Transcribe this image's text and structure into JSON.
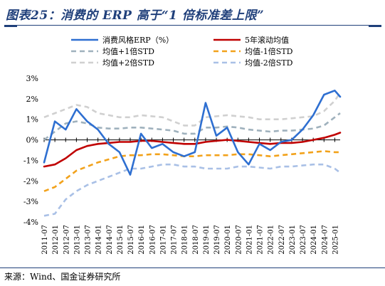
{
  "header": {
    "title": "图表25：消费的 ERP 高于“1 倍标准差上限”"
  },
  "footer": {
    "source": "来源：Wind、国金证券研究所"
  },
  "chart_data": {
    "type": "line",
    "ylim": [
      -4,
      3
    ],
    "y_ticks": [
      "3%",
      "2%",
      "1%",
      "0%",
      "-1%",
      "-2%",
      "-3%",
      "-4%"
    ],
    "x_ticks": [
      "2011-07",
      "2012-01",
      "2012-07",
      "2013-01",
      "2013-07",
      "2014-01",
      "2014-07",
      "2015-01",
      "2015-07",
      "2016-01",
      "2016-07",
      "2017-01",
      "2017-07",
      "2018-01",
      "2018-07",
      "2019-01",
      "2019-07",
      "2020-01",
      "2020-07",
      "2021-01",
      "2021-07",
      "2022-01",
      "2022-07",
      "2023-01",
      "2023-07",
      "2024-01",
      "2024-07",
      "2025-01"
    ],
    "legend_placement": "top",
    "x": [
      "2011-07",
      "2012-01",
      "2012-07",
      "2013-01",
      "2013-07",
      "2014-01",
      "2014-07",
      "2015-01",
      "2015-07",
      "2016-01",
      "2016-07",
      "2017-01",
      "2017-07",
      "2018-01",
      "2018-07",
      "2019-01",
      "2019-07",
      "2020-01",
      "2020-07",
      "2021-01",
      "2021-07",
      "2022-01",
      "2022-07",
      "2023-01",
      "2023-07",
      "2024-01",
      "2024-07",
      "2025-01",
      "2025-04"
    ],
    "series": [
      {
        "name": "消费风格ERP（%）",
        "color": "#2e6fd1",
        "style": "solid",
        "width": 2.6,
        "values": [
          -1.1,
          0.9,
          0.5,
          1.5,
          0.9,
          0.5,
          -0.2,
          -0.6,
          -1.7,
          0.3,
          -0.4,
          -0.2,
          -0.6,
          -0.8,
          -0.6,
          1.8,
          0.2,
          0.6,
          -0.6,
          -1.2,
          -0.2,
          -0.5,
          -0.1,
          0.0,
          0.5,
          1.2,
          2.2,
          2.4,
          2.1
        ]
      },
      {
        "name": "5年滚动均值",
        "color": "#c00000",
        "style": "solid",
        "width": 2.6,
        "values": [
          -1.3,
          -1.2,
          -0.9,
          -0.5,
          -0.3,
          -0.2,
          -0.15,
          -0.1,
          -0.1,
          -0.05,
          -0.05,
          -0.1,
          -0.15,
          -0.2,
          -0.2,
          -0.1,
          -0.05,
          0.0,
          -0.05,
          -0.1,
          -0.15,
          -0.2,
          -0.15,
          -0.15,
          -0.1,
          0.0,
          0.1,
          0.25,
          0.35
        ]
      },
      {
        "name": "均值+1倍STD",
        "color": "#9fb1bd",
        "style": "dashed",
        "width": 2.6,
        "values": [
          0.0,
          0.4,
          0.8,
          0.9,
          0.8,
          0.6,
          0.55,
          0.55,
          0.6,
          0.6,
          0.55,
          0.5,
          0.45,
          0.3,
          0.3,
          0.6,
          0.6,
          0.65,
          0.6,
          0.5,
          0.45,
          0.4,
          0.45,
          0.45,
          0.5,
          0.55,
          0.7,
          1.1,
          1.3
        ]
      },
      {
        "name": "均值-1倍STD",
        "color": "#f2a21b",
        "style": "dashed",
        "width": 2.6,
        "values": [
          -2.5,
          -2.3,
          -1.9,
          -1.5,
          -1.3,
          -1.1,
          -0.95,
          -0.8,
          -0.75,
          -0.75,
          -0.7,
          -0.7,
          -0.75,
          -0.8,
          -0.8,
          -0.75,
          -0.75,
          -0.75,
          -0.7,
          -0.7,
          -0.75,
          -0.8,
          -0.75,
          -0.7,
          -0.65,
          -0.6,
          -0.55,
          -0.6,
          -0.6
        ]
      },
      {
        "name": "均值+2倍STD",
        "color": "#d0d0d0",
        "style": "dashed",
        "width": 2.6,
        "values": [
          1.1,
          1.3,
          1.5,
          1.7,
          1.6,
          1.3,
          1.2,
          1.1,
          1.1,
          1.2,
          1.15,
          1.1,
          0.9,
          0.7,
          0.7,
          1.1,
          1.15,
          1.2,
          1.15,
          1.1,
          1.0,
          1.0,
          1.0,
          1.05,
          1.1,
          1.15,
          1.4,
          1.9,
          2.3
        ]
      },
      {
        "name": "均值-2倍STD",
        "color": "#a9c0e6",
        "style": "dashed",
        "width": 2.6,
        "values": [
          -3.7,
          -3.6,
          -2.9,
          -2.5,
          -2.2,
          -2.0,
          -1.8,
          -1.6,
          -1.4,
          -1.4,
          -1.3,
          -1.2,
          -1.2,
          -1.3,
          -1.3,
          -1.4,
          -1.4,
          -1.4,
          -1.3,
          -1.3,
          -1.35,
          -1.4,
          -1.3,
          -1.3,
          -1.25,
          -1.2,
          -1.2,
          -1.4,
          -1.6
        ]
      }
    ]
  }
}
